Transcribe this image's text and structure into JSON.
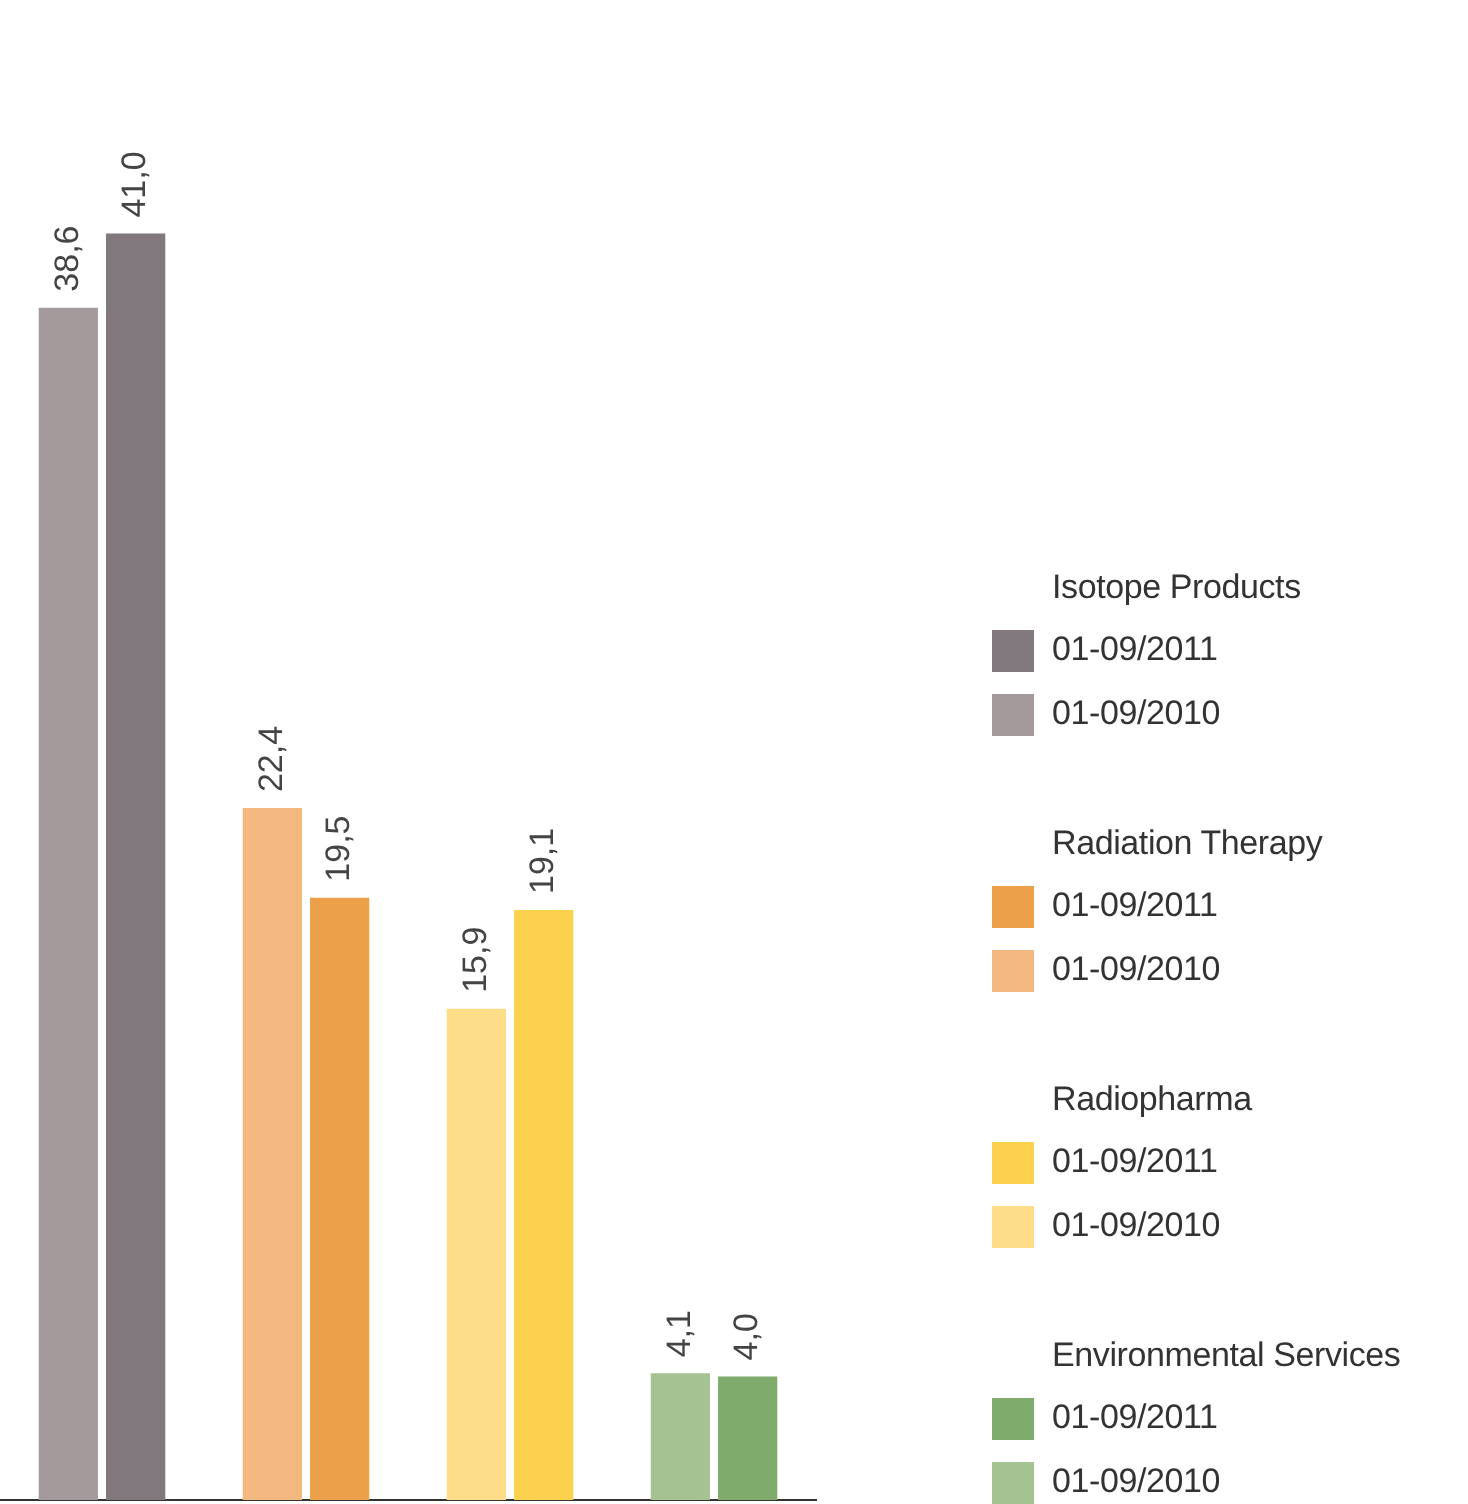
{
  "chart_data": {
    "type": "bar",
    "categories": [
      null,
      null,
      null,
      null
    ],
    "series": [
      {
        "name": "01-09/2010",
        "colors": [
          "#a49a9c",
          "#f2b880",
          "#fedd88",
          "#a5c293"
        ],
        "values": [
          38.6,
          22.4,
          15.9,
          4.1
        ],
        "value_labels": [
          "38,6",
          "22,4",
          "15,9",
          "4,1"
        ]
      },
      {
        "name": "01-09/2011",
        "colors": [
          "#80787c",
          "#eca04a",
          "#fcd14e",
          "#7fab6c"
        ],
        "values": [
          41.0,
          19.5,
          19.1,
          4.0
        ],
        "value_labels": [
          "41,0",
          "19,5",
          "19,1",
          "4,0"
        ]
      }
    ],
    "annotations": [
      "Isotope Products",
      "Radiation Therapy",
      "Radiopharma",
      "Environmental Services"
    ],
    "legend": "right",
    "tick_labels": false,
    "grid": false
  }
}
